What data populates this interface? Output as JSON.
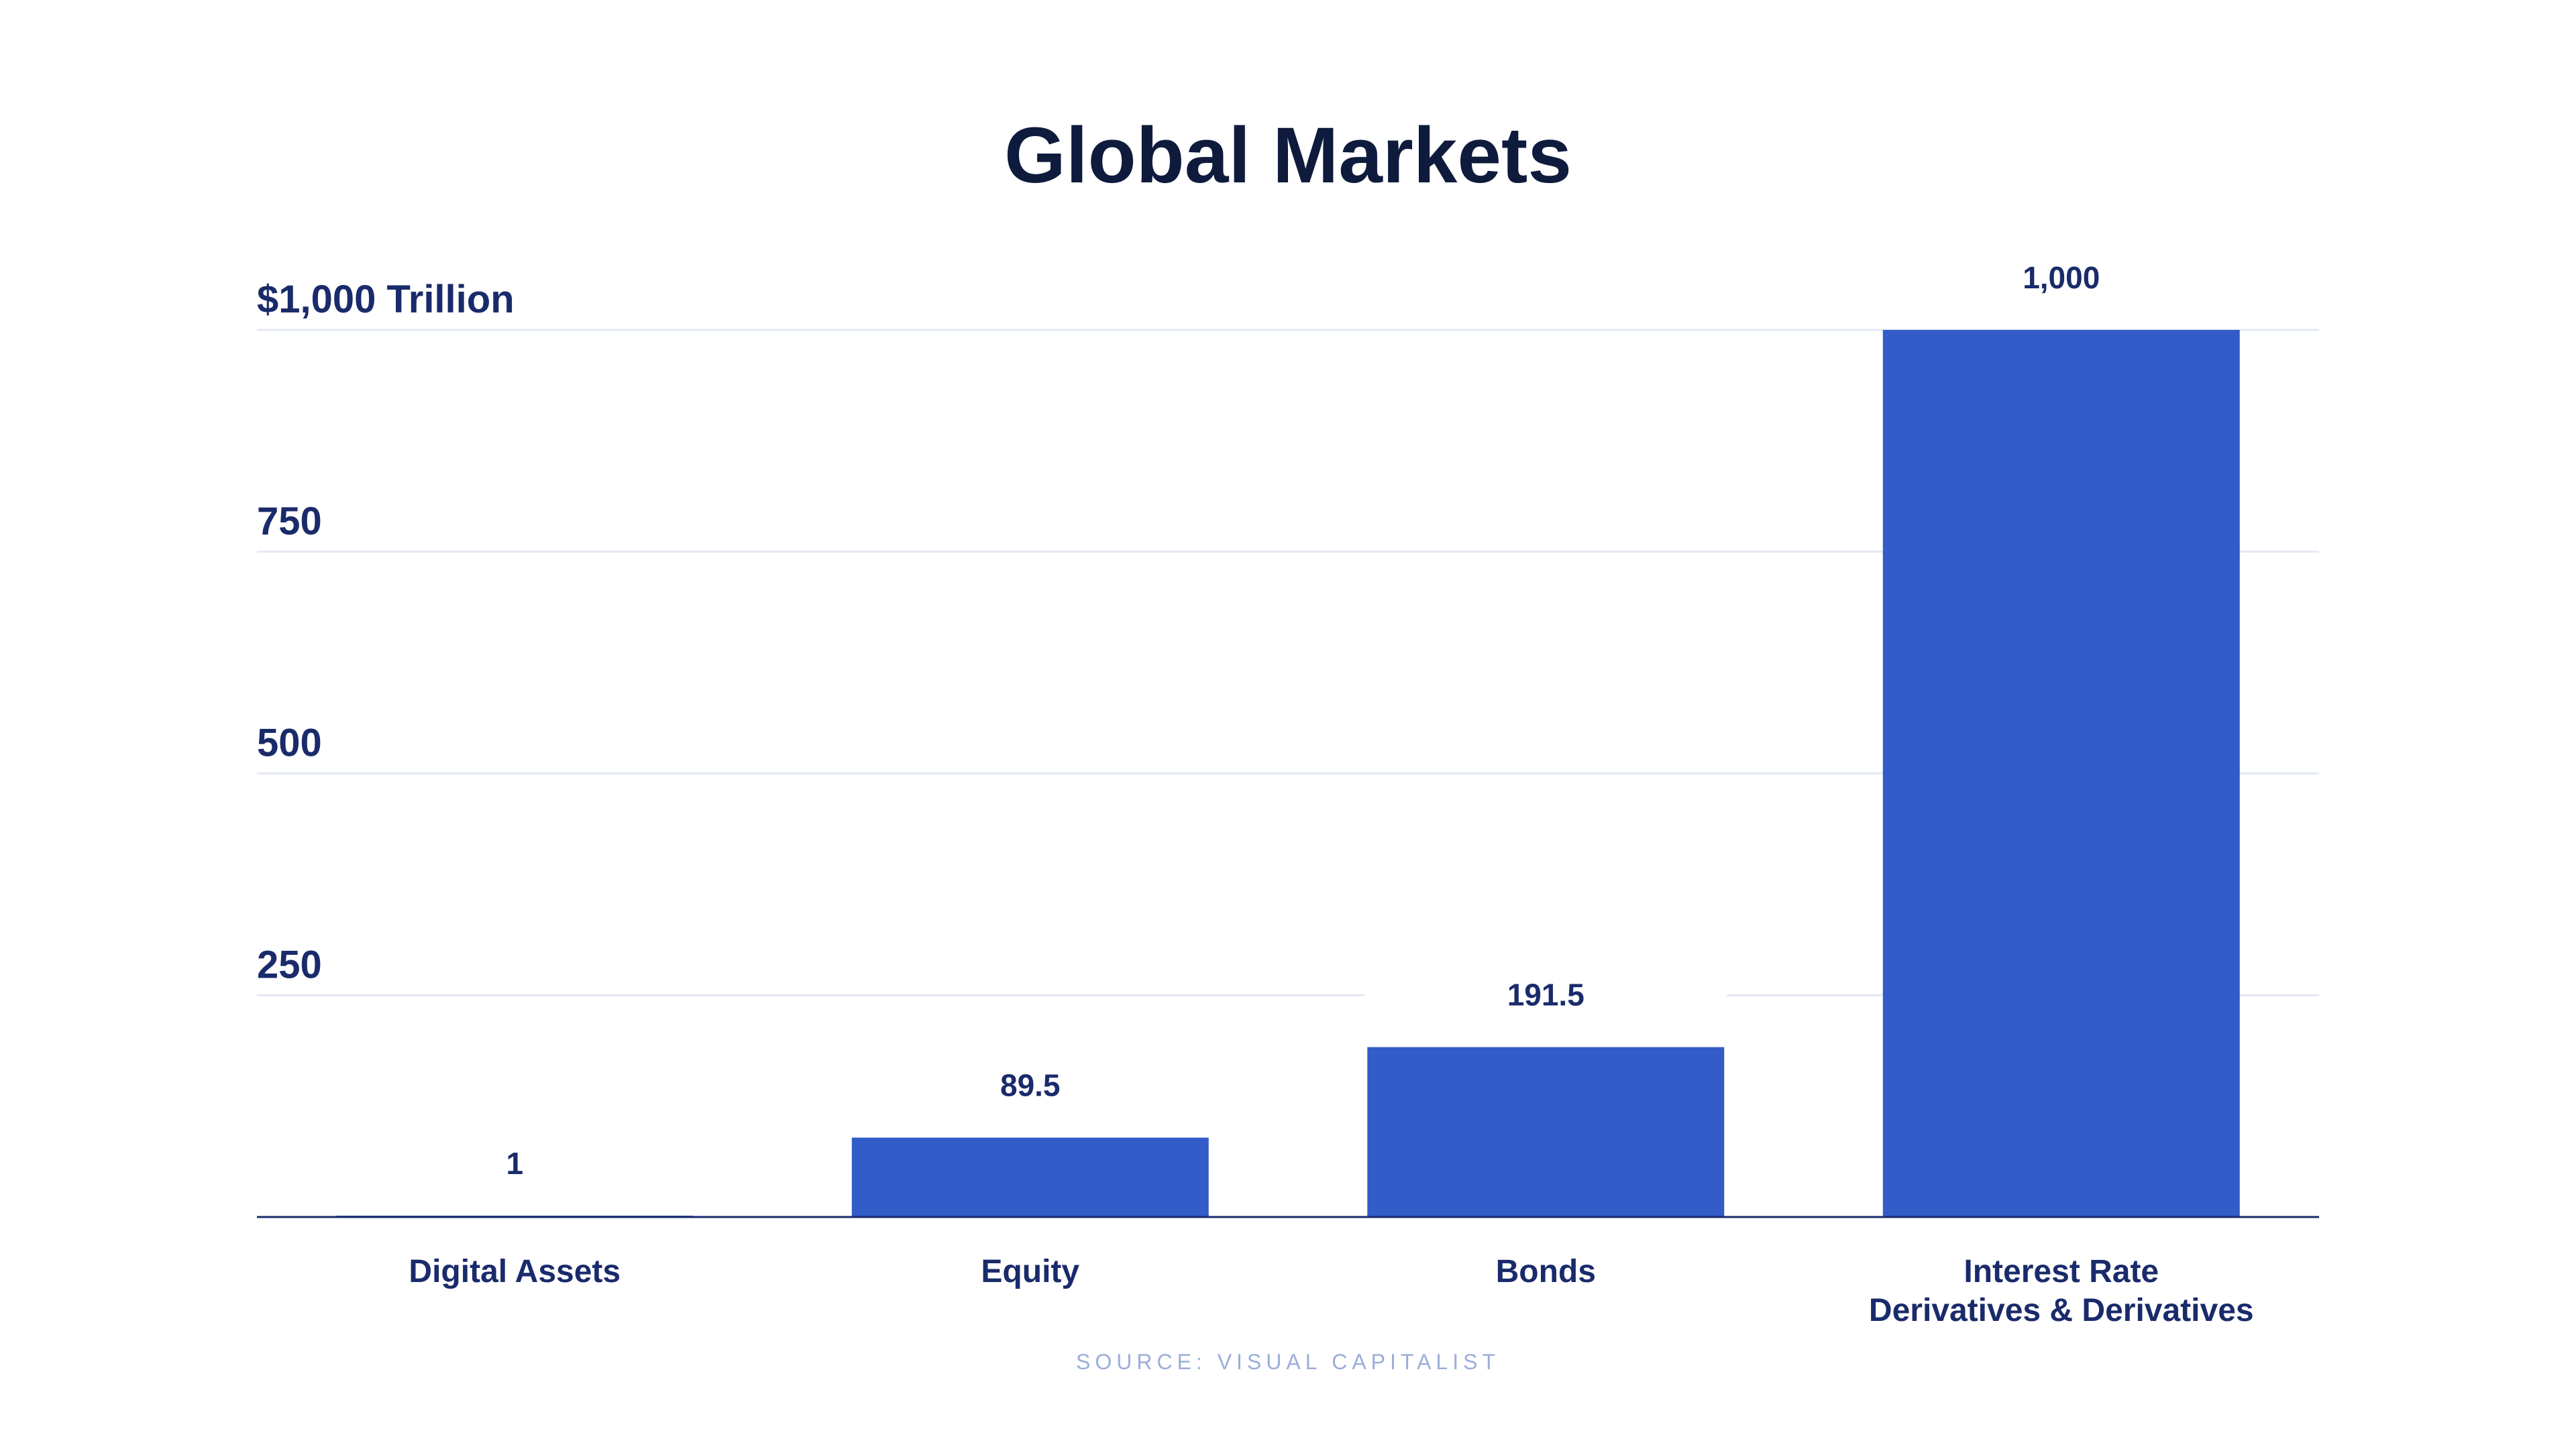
{
  "chart_data": {
    "type": "bar",
    "title": "Global Markets",
    "categories": [
      [
        "Digital Assets"
      ],
      [
        "Equity"
      ],
      [
        "Bonds"
      ],
      [
        "Interest Rate",
        "Derivatives & Derivatives"
      ]
    ],
    "values": [
      1,
      89.5,
      191.5,
      1000
    ],
    "data_labels": [
      "1",
      "89.5",
      "191.5",
      "1,000"
    ],
    "yticks": [
      {
        "value": 250,
        "label": "250"
      },
      {
        "value": 500,
        "label": "500"
      },
      {
        "value": 750,
        "label": "750"
      },
      {
        "value": 1000,
        "label": "$1,000 Trillion"
      }
    ],
    "ylim": [
      0,
      1000
    ],
    "xlabel": "",
    "ylabel": "",
    "grid": true,
    "legend": "none",
    "source": "SOURCE: VISUAL CAPITALIST",
    "colors": {
      "bar": "#325cc7",
      "title": "#0f1b3d",
      "text": "#1a2b6b",
      "grid": "#e3e8f3",
      "source": "#9aaed8"
    }
  }
}
